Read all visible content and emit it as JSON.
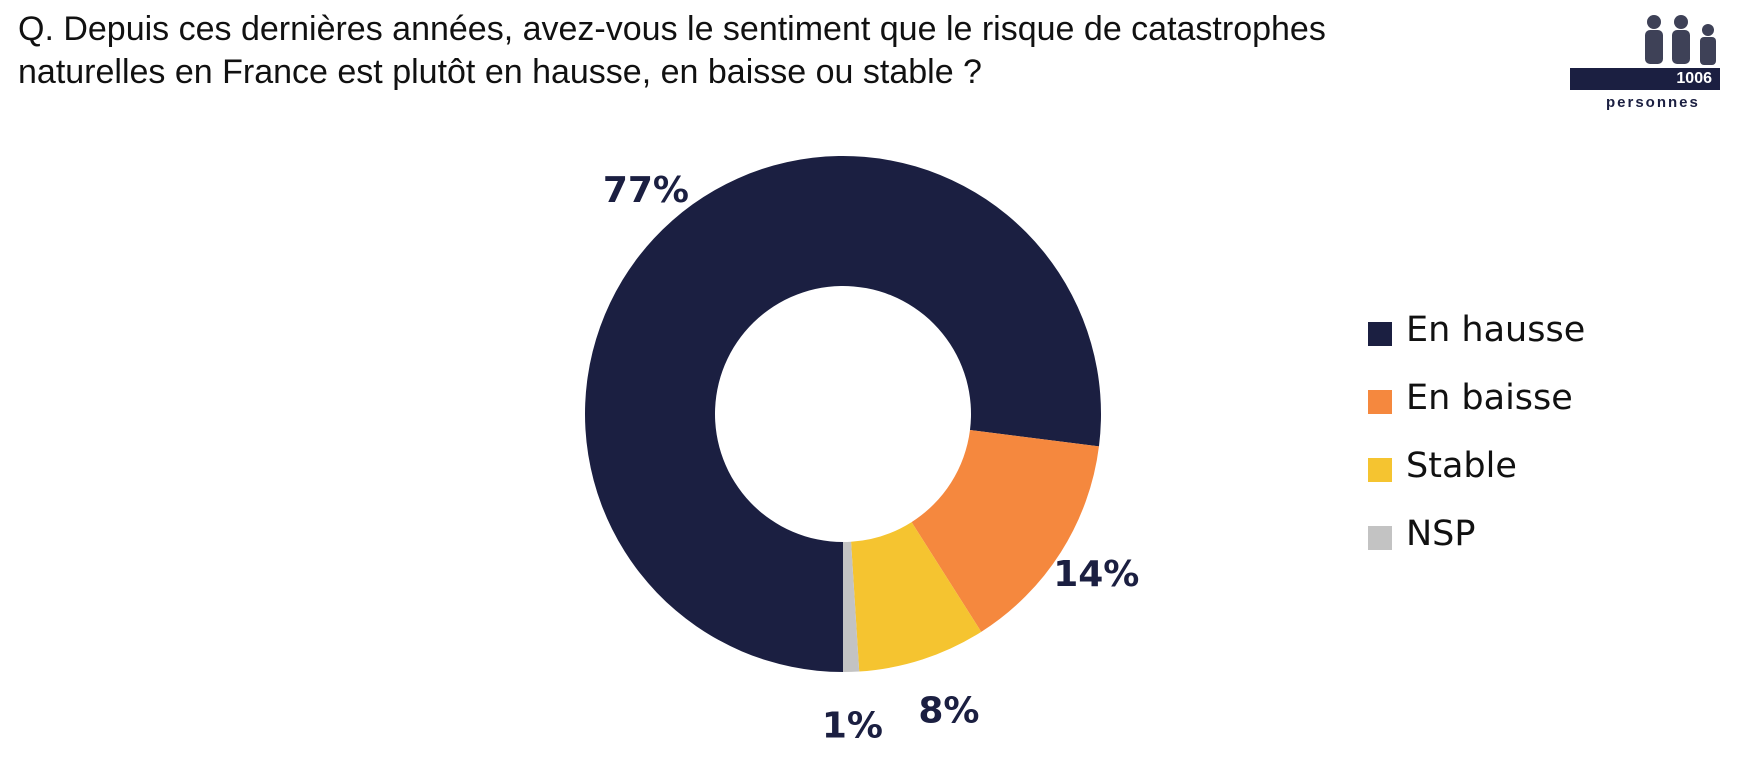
{
  "question": {
    "line1": "Q. Depuis ces dernières années, avez-vous le sentiment que le risque de catastrophes",
    "line2": "naturelles en France est plutôt en hausse, en baisse ou stable ?"
  },
  "badge": {
    "count": "1006",
    "label": "personnes",
    "icon": "people-icon"
  },
  "chart_data": {
    "type": "pie",
    "variant": "donut",
    "categories": [
      "En hausse",
      "En baisse",
      "Stable",
      "NSP"
    ],
    "values": [
      77,
      14,
      8,
      1
    ],
    "data_labels": [
      "77%",
      "14%",
      "8%",
      "1%"
    ],
    "colors": [
      "#1b1f41",
      "#f5883e",
      "#f5c430",
      "#c3c3c3"
    ],
    "label_color": "#1b1f41",
    "start": "bottom",
    "direction": "clockwise",
    "legend": {
      "position": "right",
      "entries": [
        "En hausse",
        "En baisse",
        "Stable",
        "NSP"
      ]
    }
  }
}
